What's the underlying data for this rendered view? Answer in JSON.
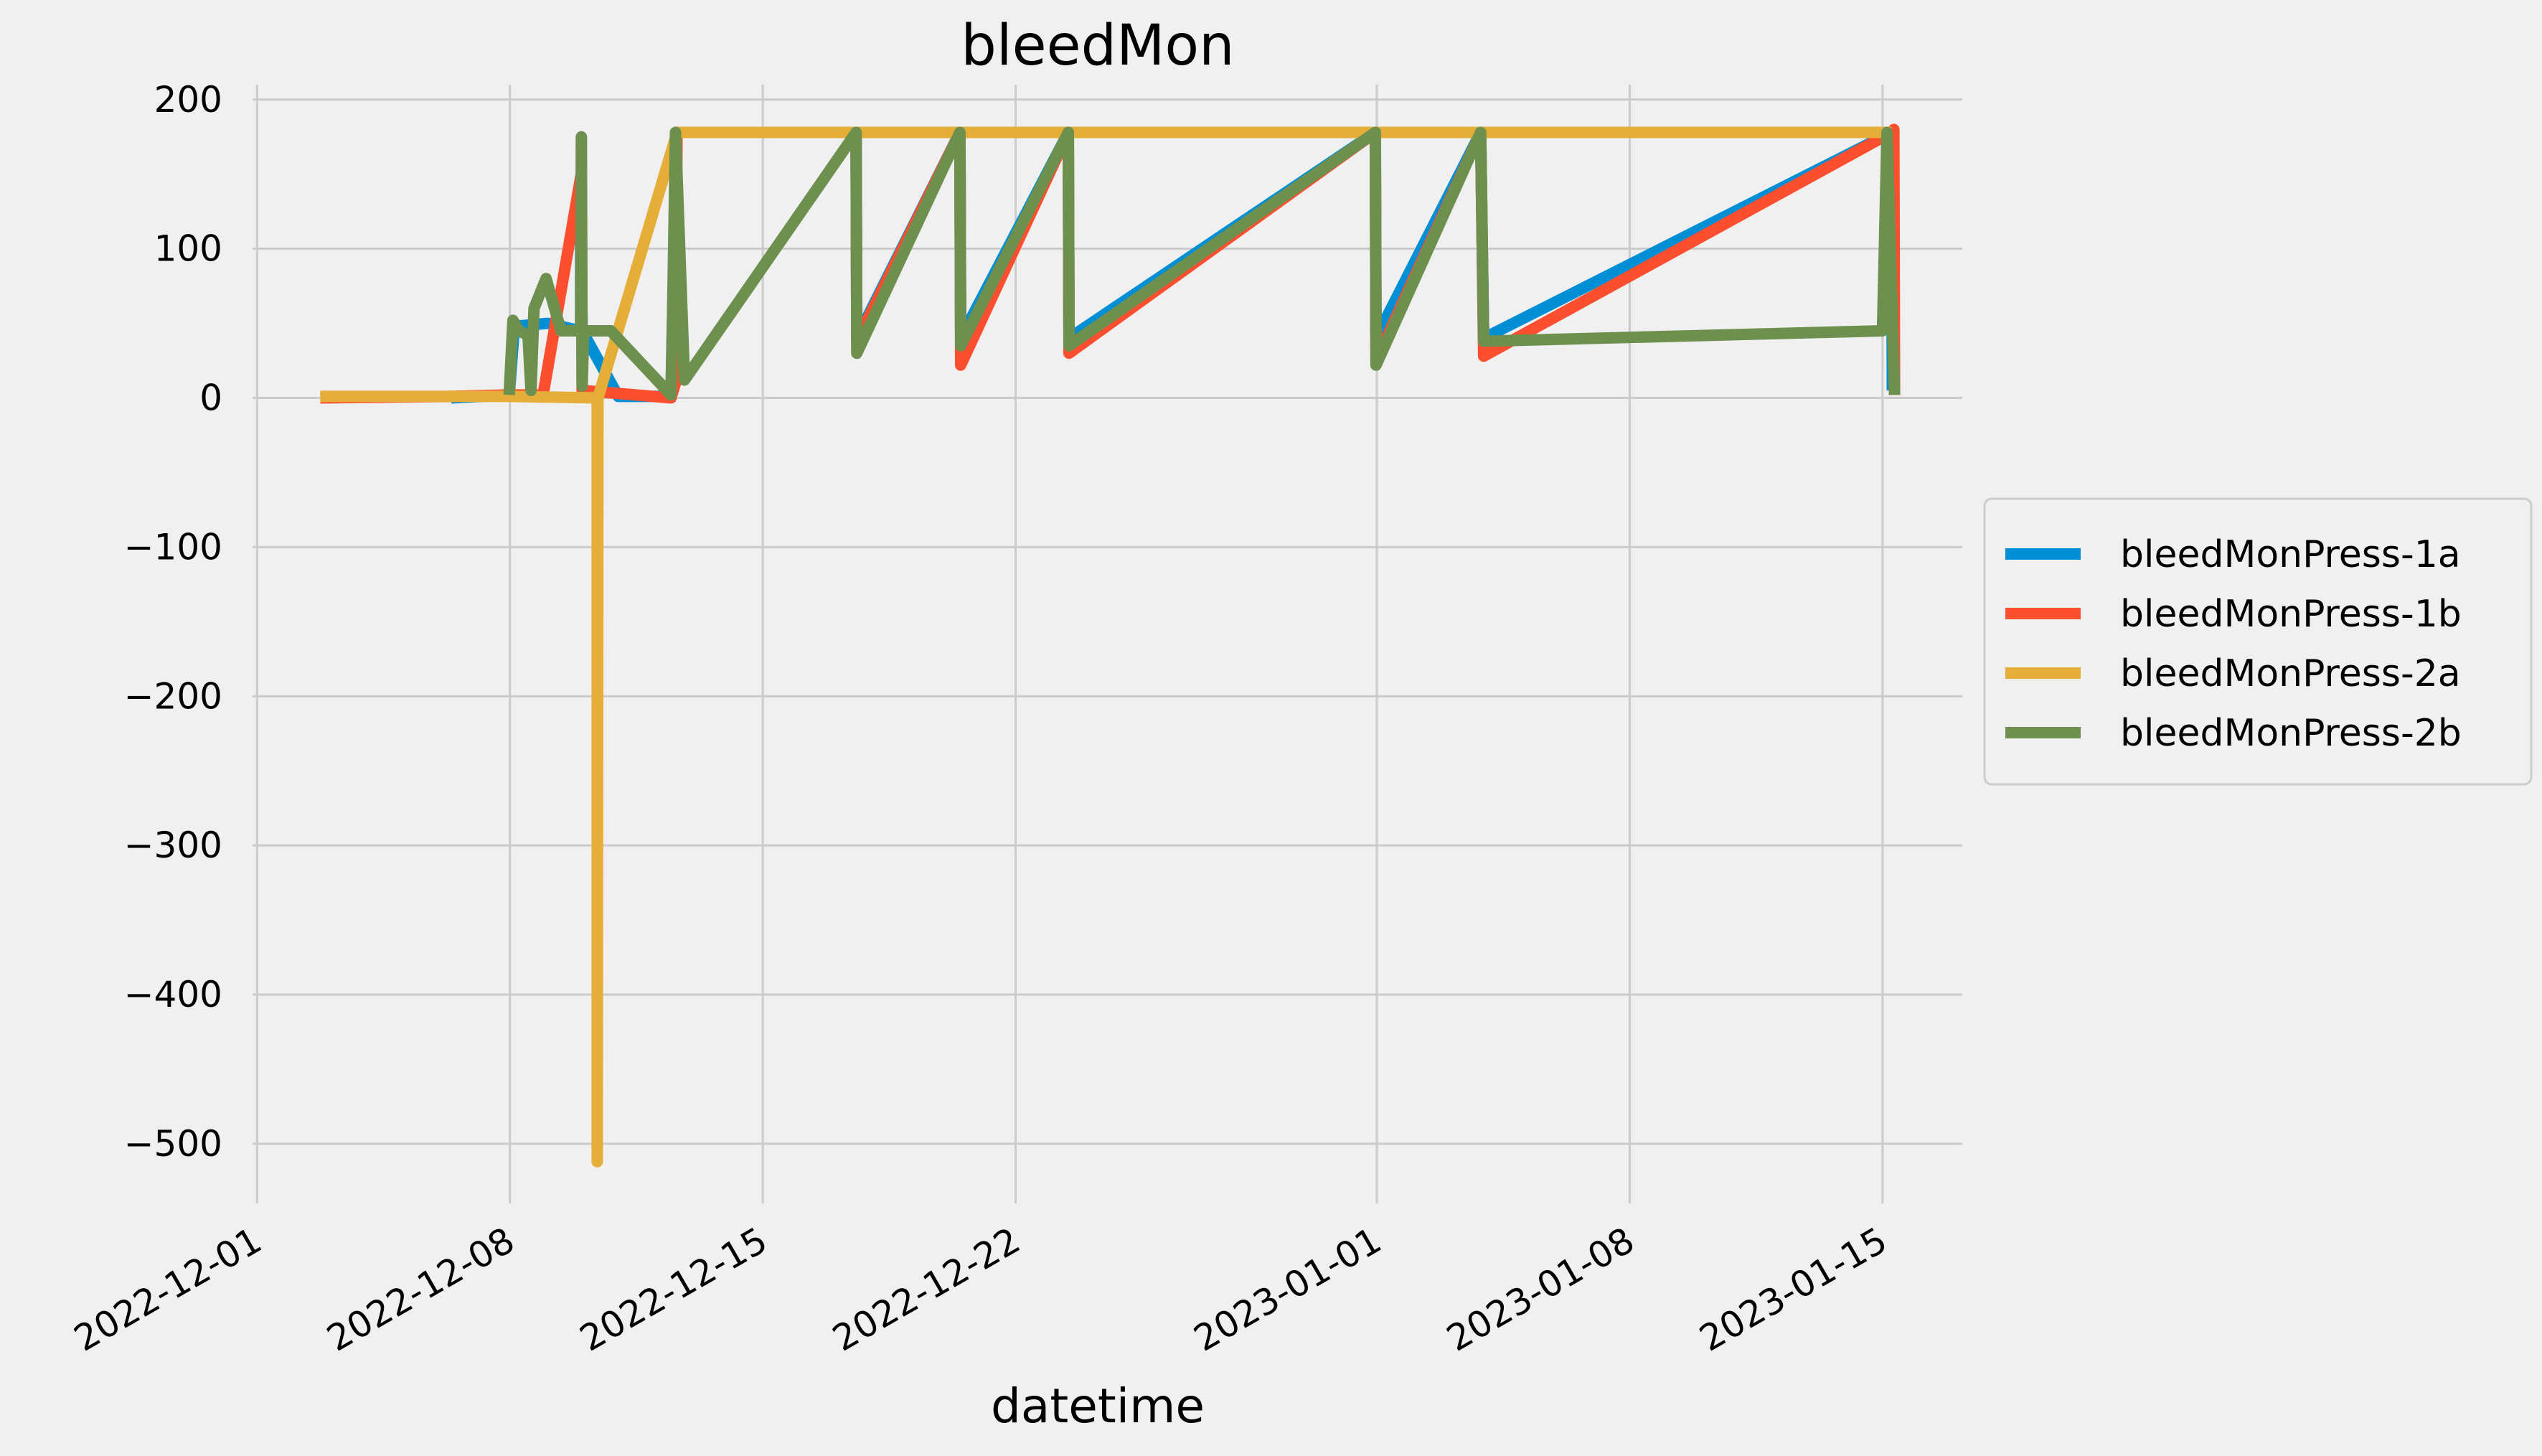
{
  "chart_data": {
    "type": "line",
    "title": "bleedMon",
    "xlabel": "datetime",
    "ylabel": "",
    "ylim": [
      -540,
      210
    ],
    "xlim": [
      "2022-11-30T21:00",
      "2023-01-17T05:00"
    ],
    "yticks": [
      200,
      100,
      0,
      -100,
      -200,
      -300,
      -400,
      -500
    ],
    "ytick_labels": [
      "200",
      "100",
      "0",
      "−100",
      "−200",
      "−300",
      "−400",
      "−500"
    ],
    "xticks": [
      "2022-12-01",
      "2022-12-08",
      "2022-12-15",
      "2022-12-22",
      "2023-01-01",
      "2023-01-08",
      "2023-01-15"
    ],
    "grid": true,
    "legend_position": "center-right-outside",
    "series": [
      {
        "name": "bleedMonPress-1a",
        "color": "#008fd5",
        "points": [
          [
            "2022-12-06T09:00",
            0
          ],
          [
            "2022-12-07T23:30",
            2
          ],
          [
            "2022-12-08T03:00",
            48
          ],
          [
            "2022-12-09T01:00",
            50
          ],
          [
            "2022-12-09T23:00",
            45
          ],
          [
            "2022-12-09T23:00",
            125
          ],
          [
            "2022-12-10T00:00",
            45
          ],
          [
            "2022-12-11T00:00",
            1
          ],
          [
            "2022-12-12T11:00",
            1
          ],
          [
            "2022-12-12T12:00",
            50
          ],
          [
            "2022-12-12T15:00",
            178
          ],
          [
            "2022-12-17T14:00",
            178
          ],
          [
            "2022-12-17T14:30",
            40
          ],
          [
            "2022-12-20T11:00",
            178
          ],
          [
            "2022-12-20T11:30",
            40
          ],
          [
            "2022-12-23T11:00",
            178
          ],
          [
            "2022-12-23T11:30",
            40
          ],
          [
            "2022-12-31T23:00",
            178
          ],
          [
            "2022-12-31T23:30",
            40
          ],
          [
            "2023-01-03T21:00",
            178
          ],
          [
            "2023-01-03T23:00",
            40
          ],
          [
            "2023-01-15T06:00",
            178
          ],
          [
            "2023-01-15T06:30",
            5
          ]
        ]
      },
      {
        "name": "bleedMonPress-1b",
        "color": "#fc4f30",
        "points": [
          [
            "2022-12-02T18:00",
            0
          ],
          [
            "2022-12-06T09:00",
            1
          ],
          [
            "2022-12-07T23:30",
            2
          ],
          [
            "2022-12-08T22:00",
            2
          ],
          [
            "2022-12-09T23:00",
            148
          ],
          [
            "2022-12-09T23:30",
            135
          ],
          [
            "2022-12-10T00:00",
            5
          ],
          [
            "2022-12-12T11:00",
            0
          ],
          [
            "2022-12-12T14:00",
            10
          ],
          [
            "2022-12-12T15:00",
            178
          ],
          [
            "2022-12-17T14:00",
            178
          ],
          [
            "2022-12-17T14:30",
            38
          ],
          [
            "2022-12-20T11:00",
            178
          ],
          [
            "2022-12-20T11:30",
            22
          ],
          [
            "2022-12-23T11:00",
            178
          ],
          [
            "2022-12-23T11:30",
            30
          ],
          [
            "2022-12-31T23:00",
            178
          ],
          [
            "2022-12-31T23:30",
            25
          ],
          [
            "2023-01-03T21:00",
            178
          ],
          [
            "2023-01-03T23:00",
            28
          ],
          [
            "2023-01-15T06:00",
            178
          ],
          [
            "2023-01-15T07:30",
            180
          ],
          [
            "2023-01-15T08:00",
            2
          ]
        ]
      },
      {
        "name": "bleedMonPress-2a",
        "color": "#e5ae38",
        "points": [
          [
            "2022-12-02T18:00",
            1
          ],
          [
            "2022-12-07T23:30",
            1
          ],
          [
            "2022-12-10T10:00",
            0
          ],
          [
            "2022-12-10T10:00",
            -512
          ],
          [
            "2022-12-10T10:30",
            0
          ],
          [
            "2022-12-12T15:00",
            178
          ],
          [
            "2022-12-17T14:00",
            178
          ],
          [
            "2022-12-20T11:00",
            178
          ],
          [
            "2022-12-23T11:00",
            178
          ],
          [
            "2022-12-31T23:00",
            178
          ],
          [
            "2023-01-03T21:00",
            178
          ],
          [
            "2023-01-15T06:00",
            178
          ]
        ]
      },
      {
        "name": "bleedMonPress-2b",
        "color": "#6d904f",
        "points": [
          [
            "2022-12-07T23:30",
            2
          ],
          [
            "2022-12-08T02:00",
            52
          ],
          [
            "2022-12-08T06:00",
            45
          ],
          [
            "2022-12-08T12:00",
            42
          ],
          [
            "2022-12-08T14:00",
            5
          ],
          [
            "2022-12-08T16:00",
            60
          ],
          [
            "2022-12-09T00:00",
            80
          ],
          [
            "2022-12-09T10:00",
            45
          ],
          [
            "2022-12-09T23:00",
            45
          ],
          [
            "2022-12-09T23:30",
            175
          ],
          [
            "2022-12-10T00:00",
            8
          ],
          [
            "2022-12-10T01:00",
            45
          ],
          [
            "2022-12-10T19:00",
            45
          ],
          [
            "2022-12-12T11:00",
            2
          ],
          [
            "2022-12-12T12:00",
            52
          ],
          [
            "2022-12-12T14:00",
            178
          ],
          [
            "2022-12-12T20:00",
            12
          ],
          [
            "2022-12-17T14:00",
            178
          ],
          [
            "2022-12-17T14:30",
            30
          ],
          [
            "2022-12-20T11:00",
            178
          ],
          [
            "2022-12-20T11:30",
            35
          ],
          [
            "2022-12-23T11:00",
            178
          ],
          [
            "2022-12-23T11:30",
            35
          ],
          [
            "2022-12-31T23:00",
            178
          ],
          [
            "2022-12-31T23:30",
            22
          ],
          [
            "2023-01-03T21:00",
            178
          ],
          [
            "2023-01-03T23:00",
            38
          ],
          [
            "2023-01-15T00:00",
            45
          ],
          [
            "2023-01-15T03:00",
            178
          ],
          [
            "2023-01-15T08:00",
            2
          ]
        ]
      }
    ]
  }
}
